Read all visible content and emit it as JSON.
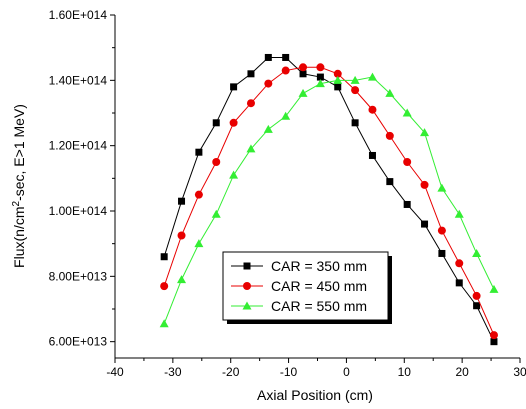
{
  "chart_data": {
    "type": "line",
    "title": "",
    "xlabel": "Axial Position (cm)",
    "ylabel_parts": [
      "Flux(n/cm",
      "2",
      "-sec, E>1 MeV)"
    ],
    "xlim": [
      -40,
      30
    ],
    "ylim": [
      55000000000000.0,
      160000000000000.0
    ],
    "xticks": [
      -40,
      -30,
      -20,
      -10,
      0,
      10,
      20,
      30
    ],
    "xtick_labels": [
      "-40",
      "-30",
      "-20",
      "-10",
      "0",
      "10",
      "20",
      "30"
    ],
    "yticks": [
      60000000000000.0,
      80000000000000.0,
      100000000000000.0,
      120000000000000.0,
      140000000000000.0,
      160000000000000.0
    ],
    "ytick_labels": [
      "6.00E+013",
      "8.00E+013",
      "1.00E+014",
      "1.20E+014",
      "1.40E+014",
      "1.60E+014"
    ],
    "grid": false,
    "legend_position": "bottom-center",
    "series": [
      {
        "name": "CAR = 350 mm",
        "color": "#000000",
        "marker": "square",
        "x": [
          -31.5,
          -28.5,
          -25.5,
          -22.5,
          -19.5,
          -16.5,
          -13.5,
          -10.5,
          -7.5,
          -4.5,
          -1.5,
          1.5,
          4.5,
          7.5,
          10.5,
          13.5,
          16.5,
          19.5,
          22.5,
          25.5,
          28.5
        ],
        "y": [
          86000000000000.0,
          103000000000000.0,
          118000000000000.0,
          127000000000000.0,
          138000000000000.0,
          142000000000000.0,
          147000000000000.0,
          147000000000000.0,
          142000000000000.0,
          141000000000000.0,
          138000000000000.0,
          127000000000000.0,
          117000000000000.0,
          109000000000000.0,
          102000000000000.0,
          96000000000000.0,
          87000000000000.0,
          78000000000000.0,
          71000000000000.0,
          60000000000000.0,
          null
        ]
      },
      {
        "name": "CAR = 450 mm",
        "color": "#e80000",
        "marker": "circle",
        "x": [
          -31.5,
          -28.5,
          -25.5,
          -22.5,
          -19.5,
          -16.5,
          -13.5,
          -10.5,
          -7.5,
          -4.5,
          -1.5,
          1.5,
          4.5,
          7.5,
          10.5,
          13.5,
          16.5,
          19.5,
          22.5,
          25.5,
          28.5
        ],
        "y": [
          77000000000000.0,
          92500000000000.0,
          105000000000000.0,
          115000000000000.0,
          127000000000000.0,
          133000000000000.0,
          139000000000000.0,
          143000000000000.0,
          144000000000000.0,
          144000000000000.0,
          142000000000000.0,
          137000000000000.0,
          131000000000000.0,
          123000000000000.0,
          115000000000000.0,
          108000000000000.0,
          94000000000000.0,
          84000000000000.0,
          74000000000000.0,
          62000000000000.0,
          null
        ]
      },
      {
        "name": "CAR = 550 mm",
        "color": "#33ee33",
        "marker": "triangle",
        "x": [
          -31.5,
          -28.5,
          -25.5,
          -22.5,
          -19.5,
          -16.5,
          -13.5,
          -10.5,
          -7.5,
          -4.5,
          -1.5,
          1.5,
          4.5,
          7.5,
          10.5,
          13.5,
          16.5,
          19.5,
          22.5,
          25.5,
          28.5
        ],
        "y": [
          65500000000000.0,
          79000000000000.0,
          90000000000000.0,
          99000000000000.0,
          111000000000000.0,
          119000000000000.0,
          125000000000000.0,
          129000000000000.0,
          136000000000000.0,
          139000000000000.0,
          140000000000000.0,
          140000000000000.0,
          141000000000000.0,
          136000000000000.0,
          130000000000000.0,
          124000000000000.0,
          107000000000000.0,
          99000000000000.0,
          87000000000000.0,
          76000000000000.0,
          null
        ]
      }
    ]
  }
}
